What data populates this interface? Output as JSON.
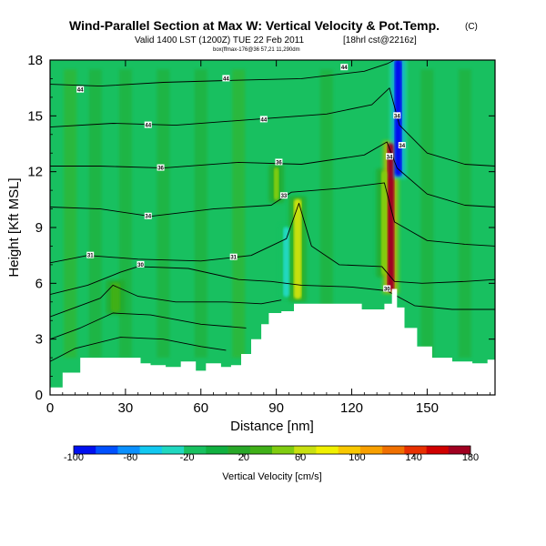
{
  "chart_data": {
    "type": "heatmap",
    "title": "Wind-Parallel Section at Max W: Vertical Velocity & Pot.Temp.",
    "title_mark": "(C)",
    "subtitle": "Valid 1400 LST (1200Z) TUE 22 Feb 2011",
    "subtitle_tag": "[18hrl cst@2216z]",
    "subtitle2": "box(ffmax-176@36 57,21 11,290dm",
    "xlabel": "Distance [nm]",
    "ylabel": "Height [Kft MSL]",
    "xlim": [
      0,
      177
    ],
    "ylim": [
      0,
      18
    ],
    "xticks": [
      0,
      30,
      60,
      90,
      120,
      150
    ],
    "yticks": [
      0,
      3,
      6,
      9,
      12,
      15,
      18
    ],
    "colorbar": {
      "label": "Vertical Velocity [cm/s]",
      "ticks": [
        -100,
        -60,
        -20,
        20,
        60,
        100,
        140,
        180
      ],
      "min": -100,
      "max": 180,
      "colors": [
        "#0010f0",
        "#0050ff",
        "#0a90ff",
        "#12c8f0",
        "#20d8c0",
        "#18c060",
        "#10b040",
        "#28a828",
        "#40b018",
        "#80cc10",
        "#c8e010",
        "#f0f000",
        "#f8c800",
        "#f8a000",
        "#f07000",
        "#e83000",
        "#d00000",
        "#a00020"
      ]
    },
    "terrain": [
      [
        0,
        0.4
      ],
      [
        5,
        1.2
      ],
      [
        12,
        2.0
      ],
      [
        30,
        2.0
      ],
      [
        36,
        1.7
      ],
      [
        40,
        1.6
      ],
      [
        46,
        1.5
      ],
      [
        52,
        1.8
      ],
      [
        58,
        1.3
      ],
      [
        62,
        1.7
      ],
      [
        68,
        1.5
      ],
      [
        72,
        1.6
      ],
      [
        76,
        2.2
      ],
      [
        80,
        3.0
      ],
      [
        84,
        3.8
      ],
      [
        87,
        4.4
      ],
      [
        92,
        4.5
      ],
      [
        97,
        4.9
      ],
      [
        122,
        4.9
      ],
      [
        124,
        4.6
      ],
      [
        128,
        4.6
      ],
      [
        130,
        4.6
      ],
      [
        133,
        4.9
      ],
      [
        136,
        5.7
      ],
      [
        138,
        4.7
      ],
      [
        141,
        3.6
      ],
      [
        146,
        2.6
      ],
      [
        152,
        2.0
      ],
      [
        160,
        1.8
      ],
      [
        168,
        1.7
      ],
      [
        174,
        1.9
      ],
      [
        177,
        1.8
      ]
    ],
    "theta_contours": [
      {
        "label": "44",
        "points": [
          [
            0,
            16.7
          ],
          [
            20,
            16.6
          ],
          [
            45,
            16.8
          ],
          [
            70,
            16.9
          ],
          [
            100,
            17.0
          ],
          [
            125,
            17.4
          ],
          [
            134,
            17.8
          ],
          [
            137,
            18
          ]
        ]
      },
      {
        "label": "34",
        "points": [
          [
            0,
            14.4
          ],
          [
            25,
            14.6
          ],
          [
            50,
            14.5
          ],
          [
            80,
            14.8
          ],
          [
            110,
            15.1
          ],
          [
            128,
            15.6
          ],
          [
            135,
            16.5
          ],
          [
            139,
            14.5
          ],
          [
            150,
            13.0
          ],
          [
            165,
            12.4
          ],
          [
            177,
            12.3
          ]
        ]
      },
      {
        "label": "36",
        "points": [
          [
            0,
            12.3
          ],
          [
            20,
            12.3
          ],
          [
            45,
            12.2
          ],
          [
            75,
            12.5
          ],
          [
            100,
            12.4
          ],
          [
            125,
            12.9
          ],
          [
            134,
            13.6
          ],
          [
            138,
            12.2
          ],
          [
            150,
            10.8
          ],
          [
            165,
            10.2
          ],
          [
            177,
            10.1
          ]
        ]
      },
      {
        "label": "34",
        "points": [
          [
            0,
            10.1
          ],
          [
            20,
            10.0
          ],
          [
            40,
            9.6
          ],
          [
            65,
            10.0
          ],
          [
            88,
            10.2
          ],
          [
            96,
            10.9
          ],
          [
            115,
            11.1
          ],
          [
            133,
            11.4
          ],
          [
            137,
            9.3
          ],
          [
            150,
            8.3
          ],
          [
            165,
            8.1
          ],
          [
            177,
            8.0
          ]
        ]
      },
      {
        "label": "31",
        "points": [
          [
            0,
            7.1
          ],
          [
            15,
            7.5
          ],
          [
            35,
            7.3
          ],
          [
            60,
            7.2
          ],
          [
            80,
            7.5
          ],
          [
            94,
            8.4
          ],
          [
            99,
            10.3
          ],
          [
            104,
            8.0
          ],
          [
            115,
            7.0
          ],
          [
            132,
            6.9
          ],
          [
            137,
            6.1
          ],
          [
            148,
            6.0
          ],
          [
            165,
            6.1
          ],
          [
            177,
            6.2
          ]
        ]
      },
      {
        "label": "30",
        "points": [
          [
            0,
            5.4
          ],
          [
            15,
            5.9
          ],
          [
            28,
            6.6
          ],
          [
            35,
            6.9
          ],
          [
            55,
            6.8
          ],
          [
            75,
            6.2
          ],
          [
            88,
            6.1
          ],
          [
            100,
            5.9
          ],
          [
            120,
            5.8
          ],
          [
            134,
            5.6
          ],
          [
            145,
            4.8
          ],
          [
            160,
            4.6
          ],
          [
            177,
            4.6
          ]
        ]
      },
      {
        "label": "",
        "points": [
          [
            0,
            4.2
          ],
          [
            10,
            4.7
          ],
          [
            20,
            5.2
          ],
          [
            25,
            5.9
          ],
          [
            35,
            5.3
          ],
          [
            50,
            5.0
          ],
          [
            70,
            5.0
          ],
          [
            84,
            4.9
          ],
          [
            92,
            5.1
          ]
        ]
      },
      {
        "label": "",
        "points": [
          [
            0,
            3.0
          ],
          [
            12,
            3.6
          ],
          [
            25,
            4.4
          ],
          [
            40,
            4.3
          ],
          [
            60,
            3.8
          ],
          [
            78,
            3.6
          ]
        ]
      },
      {
        "label": "",
        "points": [
          [
            0,
            1.8
          ],
          [
            10,
            2.5
          ],
          [
            28,
            3.1
          ],
          [
            45,
            3.0
          ],
          [
            60,
            2.6
          ],
          [
            70,
            2.4
          ]
        ]
      }
    ],
    "contour_labels": [
      {
        "text": "44",
        "x": 12,
        "y": 16.4
      },
      {
        "text": "44",
        "x": 70,
        "y": 17.0
      },
      {
        "text": "44",
        "x": 117,
        "y": 17.6
      },
      {
        "text": "44",
        "x": 39,
        "y": 14.5
      },
      {
        "text": "44",
        "x": 85,
        "y": 14.8
      },
      {
        "text": "34",
        "x": 138,
        "y": 15.0
      },
      {
        "text": "36",
        "x": 44,
        "y": 12.2
      },
      {
        "text": "36",
        "x": 91,
        "y": 12.5
      },
      {
        "text": "34",
        "x": 140,
        "y": 13.4
      },
      {
        "text": "34",
        "x": 135,
        "y": 12.8
      },
      {
        "text": "34",
        "x": 39,
        "y": 9.6
      },
      {
        "text": "33",
        "x": 93,
        "y": 10.7
      },
      {
        "text": "31",
        "x": 16,
        "y": 7.5
      },
      {
        "text": "30",
        "x": 36,
        "y": 7.0
      },
      {
        "text": "31",
        "x": 73,
        "y": 7.4
      },
      {
        "text": "30",
        "x": 134,
        "y": 5.7
      }
    ],
    "w_features": [
      {
        "kind": "down",
        "x": 138.5,
        "y0": 11.8,
        "y1": 18,
        "w": 2.2,
        "value": -100
      },
      {
        "kind": "up",
        "x": 135.5,
        "y0": 5.6,
        "y1": 13.5,
        "w": 2.2,
        "value": 180
      },
      {
        "kind": "up",
        "x": 98.5,
        "y0": 5.2,
        "y1": 10.5,
        "w": 2.5,
        "value": 60
      },
      {
        "kind": "up",
        "x": 26,
        "y0": 4.5,
        "y1": 6.0,
        "w": 3.0,
        "value": 30
      },
      {
        "kind": "down",
        "x": 94,
        "y0": 5.3,
        "y1": 9.0,
        "w": 2.0,
        "value": -30
      },
      {
        "kind": "up",
        "x": 133,
        "y0": 6.5,
        "y1": 12.0,
        "w": 2.0,
        "value": 40
      },
      {
        "kind": "up",
        "x": 90,
        "y0": 10.5,
        "y1": 12.2,
        "w": 1.5,
        "value": 40
      }
    ]
  }
}
